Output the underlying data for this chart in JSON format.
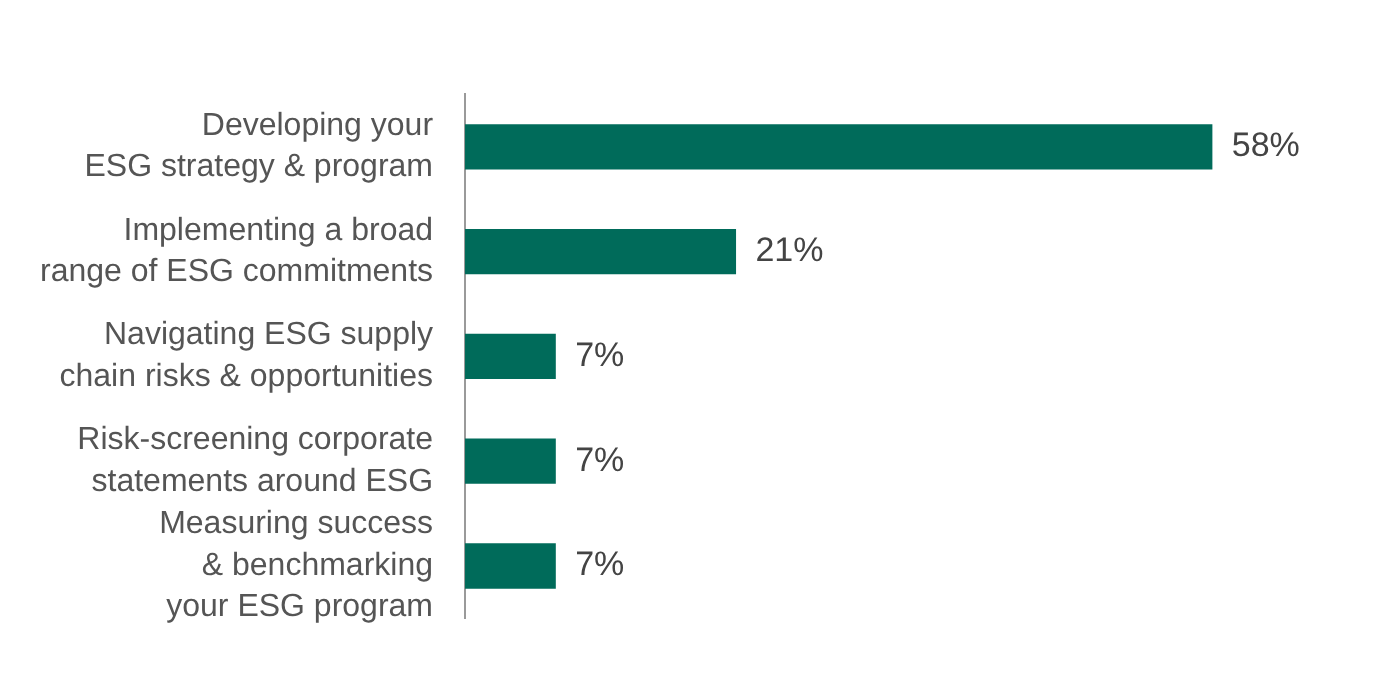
{
  "chart_data": {
    "type": "bar",
    "orientation": "horizontal",
    "categories": [
      "Developing your\nESG strategy & program",
      "Implementing a broad\nrange of ESG commitments",
      "Navigating ESG supply\nchain risks & opportunities",
      "Risk-screening corporate\nstatements around ESG",
      "Measuring success\n& benchmarking\nyour ESG program"
    ],
    "values": [
      58,
      21,
      7,
      7,
      7
    ],
    "value_labels": [
      "58%",
      "21%",
      "7%",
      "7%",
      "7%"
    ],
    "color": "#006b5a",
    "tick_labels": "y"
  }
}
